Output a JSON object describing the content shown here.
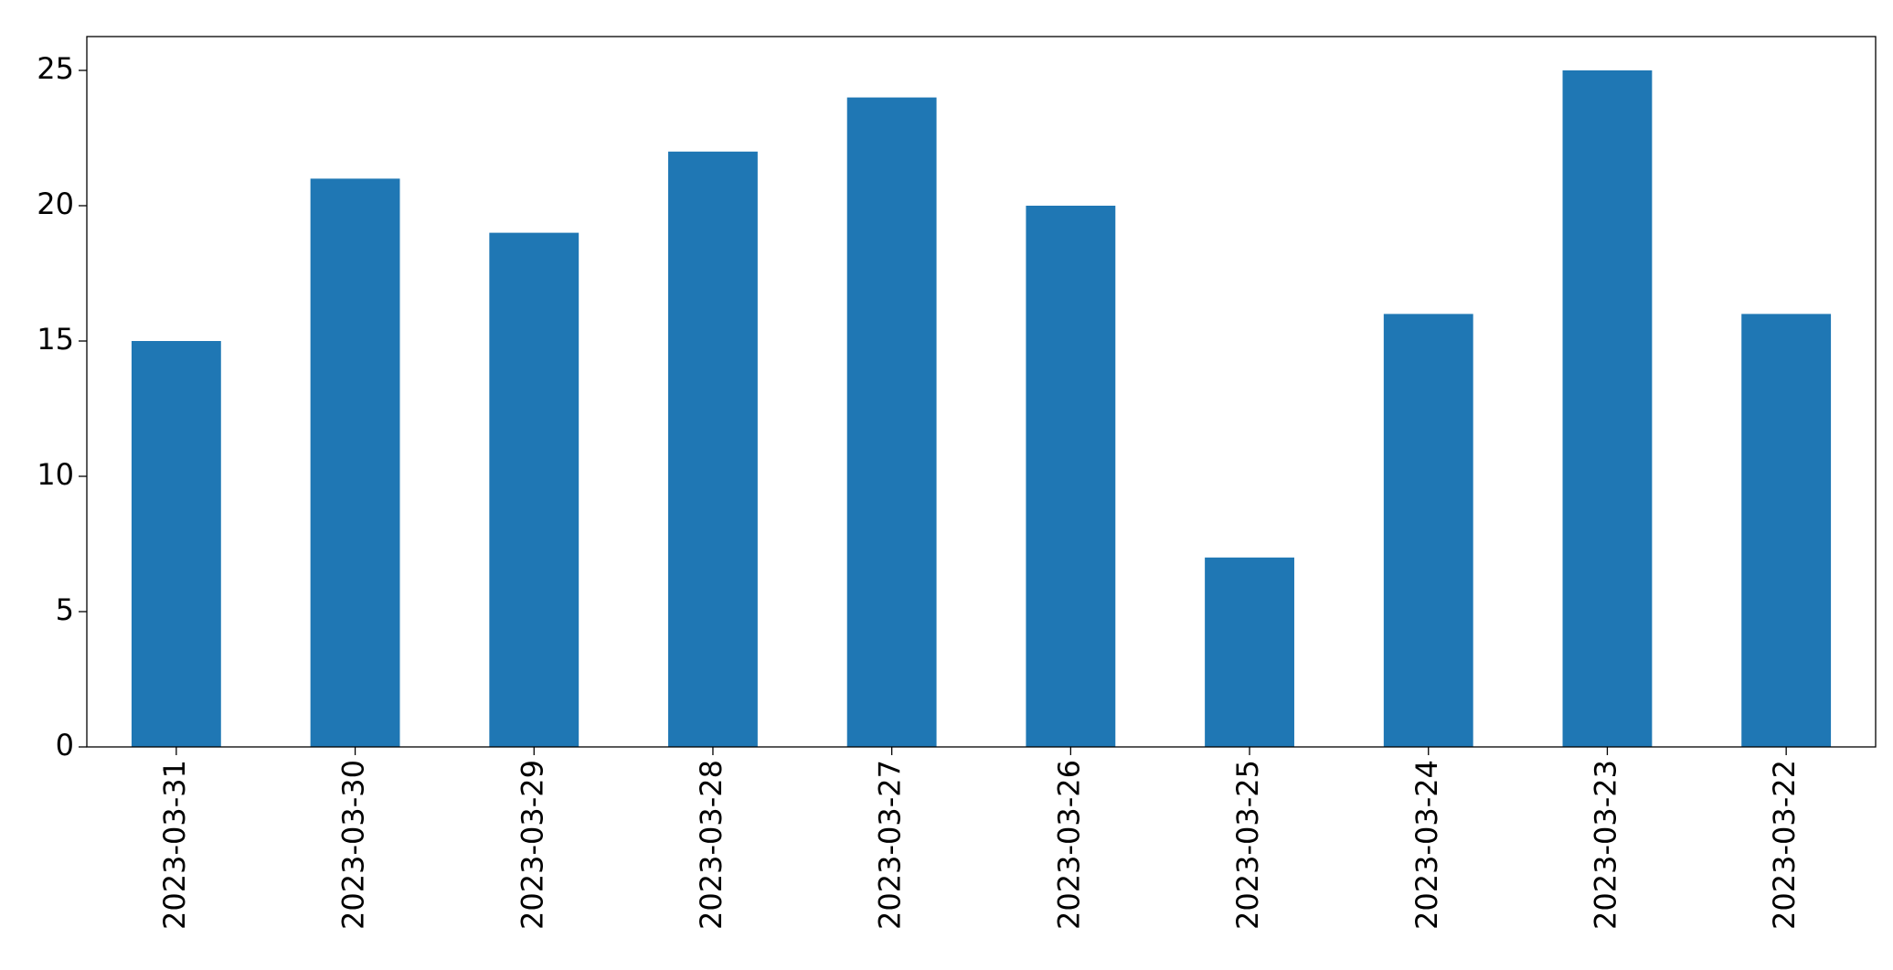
{
  "chart_data": {
    "type": "bar",
    "categories": [
      "2023-03-31",
      "2023-03-30",
      "2023-03-29",
      "2023-03-28",
      "2023-03-27",
      "2023-03-26",
      "2023-03-25",
      "2023-03-24",
      "2023-03-23",
      "2023-03-22"
    ],
    "values": [
      15,
      21,
      19,
      22,
      24,
      20,
      7,
      16,
      25,
      16
    ],
    "color": "#1f77b4",
    "ylim": [
      0,
      26.25
    ],
    "yticks": [
      0,
      5,
      10,
      15,
      20,
      25
    ],
    "grid": false
  }
}
